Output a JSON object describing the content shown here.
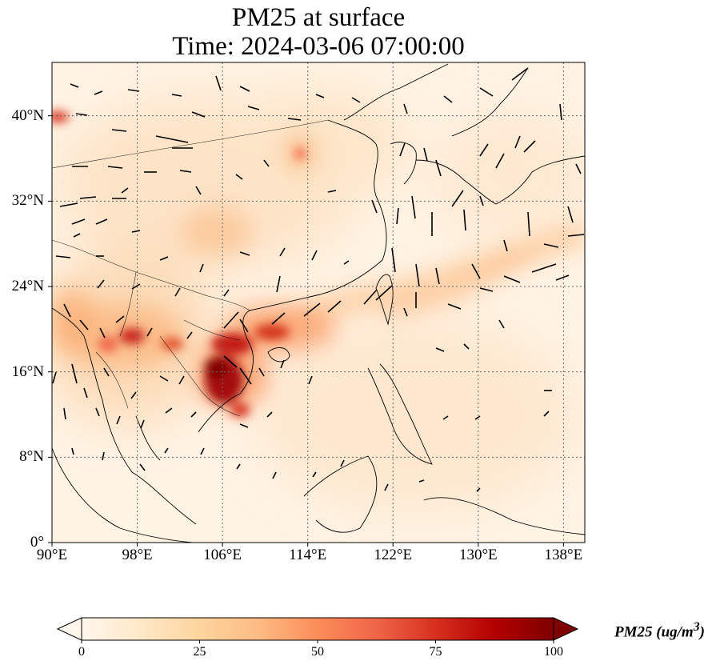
{
  "title": {
    "line1": "PM25 at surface",
    "line2": "Time: 2024-03-06 07:00:00"
  },
  "map": {
    "lon_range": [
      90,
      140
    ],
    "lat_range": [
      0,
      45
    ],
    "lat_ticks": [
      {
        "value": 0,
        "label": "0°"
      },
      {
        "value": 8,
        "label": "8°N"
      },
      {
        "value": 16,
        "label": "16°N"
      },
      {
        "value": 24,
        "label": "24°N"
      },
      {
        "value": 32,
        "label": "32°N"
      },
      {
        "value": 40,
        "label": "40°N"
      }
    ],
    "lon_ticks": [
      {
        "value": 90,
        "label": "90°E"
      },
      {
        "value": 98,
        "label": "98°E"
      },
      {
        "value": 106,
        "label": "106°E"
      },
      {
        "value": 114,
        "label": "114°E"
      },
      {
        "value": 122,
        "label": "122°E"
      },
      {
        "value": 130,
        "label": "130°E"
      },
      {
        "value": 138,
        "label": "138°E"
      }
    ],
    "gridlines": "dotted",
    "coastlines": true,
    "wind_vectors": true
  },
  "colorbar": {
    "label": "PM25 (ug/m",
    "label_superscript": "3",
    "label_close": ")",
    "range": [
      0,
      100
    ],
    "ticks": [
      {
        "value": 0,
        "label": "0"
      },
      {
        "value": 25,
        "label": "25"
      },
      {
        "value": 50,
        "label": "50"
      },
      {
        "value": 75,
        "label": "75"
      },
      {
        "value": 100,
        "label": "100"
      }
    ],
    "extend": "both",
    "colormap": "OrRd",
    "colors": [
      "#fff7ec",
      "#fee8c8",
      "#fdd49e",
      "#fdbb84",
      "#fc8d59",
      "#ef6548",
      "#d7301f",
      "#b30000",
      "#7f0000"
    ]
  },
  "chart_data": {
    "type": "heatmap",
    "title": "PM25 at surface",
    "subtitle": "Time: 2024-03-06 07:00:00",
    "xlabel": "",
    "ylabel": "",
    "xlim": [
      90,
      140
    ],
    "ylim": [
      0,
      45
    ],
    "value_range": [
      0,
      100
    ],
    "grid": true,
    "hotspots": [
      {
        "lon": 106,
        "lat": 15,
        "value": 90
      },
      {
        "lon": 107,
        "lat": 18,
        "value": 70
      },
      {
        "lon": 112,
        "lat": 19,
        "value": 60
      },
      {
        "lon": 97,
        "lat": 19,
        "value": 60
      },
      {
        "lon": 100,
        "lat": 18,
        "value": 45
      },
      {
        "lon": 113,
        "lat": 21,
        "value": 45
      },
      {
        "lon": 107,
        "lat": 12,
        "value": 45
      },
      {
        "lon": 91,
        "lat": 20,
        "value": 35
      },
      {
        "lon": 105,
        "lat": 28,
        "value": 30
      },
      {
        "lon": 91,
        "lat": 40,
        "value": 55
      },
      {
        "lon": 113,
        "lat": 36,
        "value": 35
      },
      {
        "lon": 102,
        "lat": 30,
        "value": 25
      },
      {
        "lon": 134,
        "lat": 26,
        "value": 25
      }
    ]
  }
}
